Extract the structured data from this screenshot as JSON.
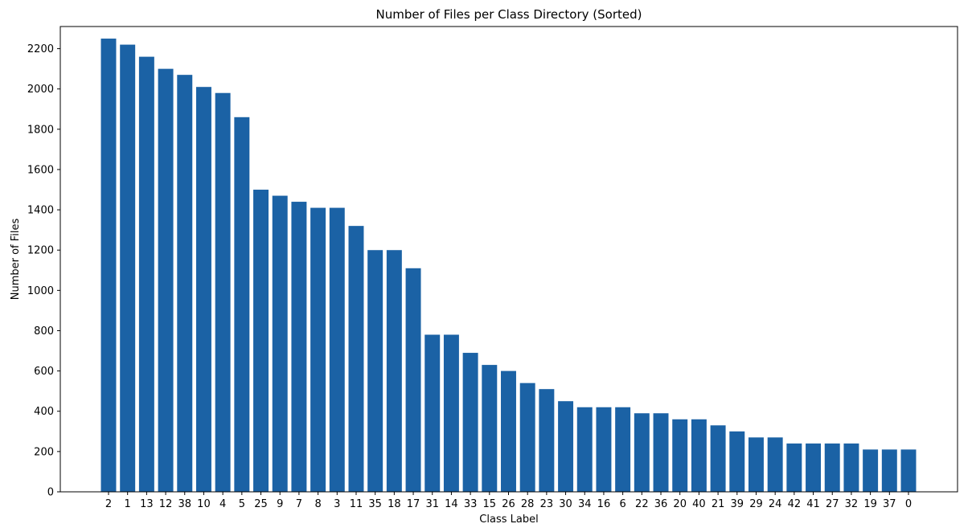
{
  "chart_data": {
    "type": "bar",
    "title": "Number of Files per Class Directory (Sorted)",
    "xlabel": "Class Label",
    "ylabel": "Number of Files",
    "categories": [
      "2",
      "1",
      "13",
      "12",
      "38",
      "10",
      "4",
      "5",
      "25",
      "9",
      "7",
      "8",
      "3",
      "11",
      "35",
      "18",
      "17",
      "31",
      "14",
      "33",
      "15",
      "26",
      "28",
      "23",
      "30",
      "34",
      "16",
      "6",
      "22",
      "36",
      "20",
      "40",
      "21",
      "39",
      "29",
      "24",
      "42",
      "41",
      "27",
      "32",
      "19",
      "37",
      "0"
    ],
    "values": [
      2250,
      2220,
      2160,
      2100,
      2070,
      2010,
      1980,
      1860,
      1500,
      1470,
      1440,
      1410,
      1410,
      1320,
      1200,
      1200,
      1110,
      780,
      780,
      690,
      630,
      600,
      540,
      510,
      450,
      420,
      420,
      420,
      390,
      390,
      360,
      360,
      330,
      300,
      270,
      270,
      240,
      240,
      240,
      240,
      210,
      210,
      210
    ],
    "ylim": [
      0,
      2310
    ],
    "yticks": [
      0,
      200,
      400,
      600,
      800,
      1000,
      1200,
      1400,
      1600,
      1800,
      2000,
      2200
    ],
    "grid": false,
    "bar_color": "#1b62a5"
  }
}
